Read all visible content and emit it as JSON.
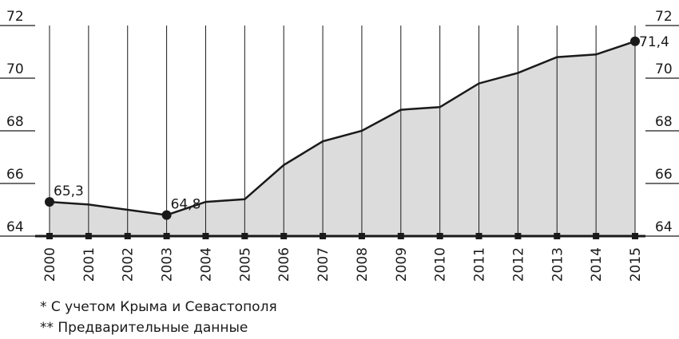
{
  "chart_data": {
    "type": "area",
    "categories": [
      "2000",
      "2001",
      "2002",
      "2003",
      "2004",
      "2005",
      "2006",
      "2007",
      "2008",
      "2009",
      "2010",
      "2011",
      "2012",
      "2013",
      "2014",
      "2015"
    ],
    "values": [
      65.3,
      65.2,
      65.0,
      64.8,
      65.3,
      65.4,
      66.7,
      67.6,
      68.0,
      68.8,
      68.9,
      69.8,
      70.2,
      70.8,
      70.9,
      71.4
    ],
    "value_labels": [
      "65,3",
      null,
      null,
      "64,8",
      null,
      null,
      null,
      null,
      null,
      null,
      null,
      null,
      null,
      null,
      null,
      "71,4"
    ],
    "color": "#dcdcdc",
    "line_color": "#1a1a1a",
    "ylim": [
      64,
      72
    ],
    "yticks": [
      64,
      66,
      68,
      70,
      72
    ],
    "y2lim": [
      64,
      72
    ],
    "y2ticks": [
      64,
      66,
      68,
      70,
      72
    ],
    "notes": [
      "* С учетом Крыма и Севастополя",
      "** Предварительные данные"
    ]
  }
}
